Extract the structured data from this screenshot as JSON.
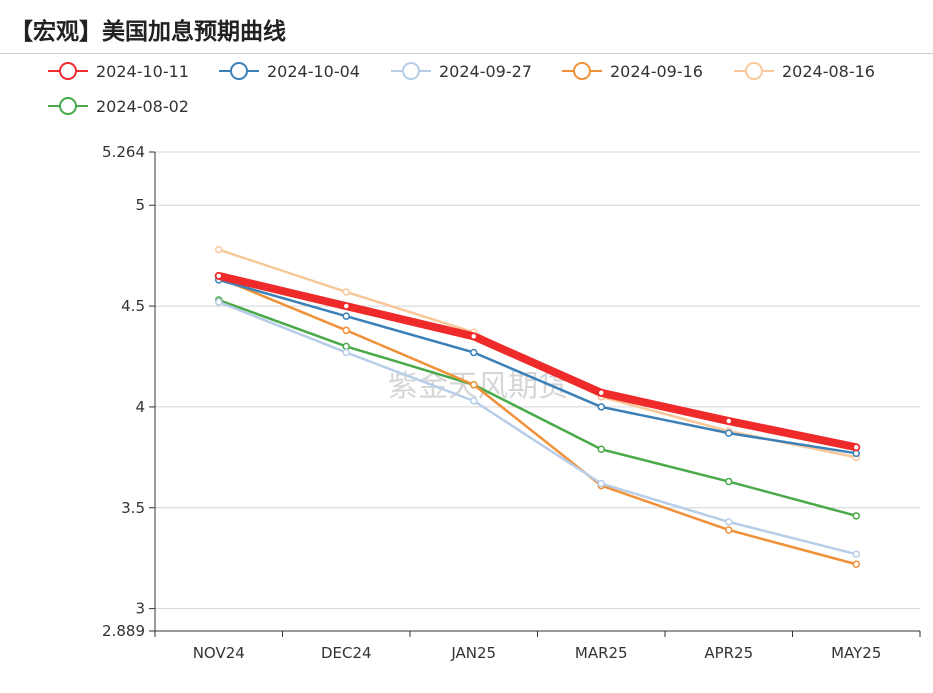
{
  "header": {
    "title": "【宏观】美国加息预期曲线"
  },
  "watermark": "紫金天风期货",
  "chart_data": {
    "type": "line",
    "categories": [
      "NOV24",
      "DEC24",
      "JAN25",
      "MAR25",
      "APR25",
      "MAY25"
    ],
    "ylim": [
      2.889,
      5.264
    ],
    "yticks": [
      "2.889",
      "3",
      "3.5",
      "4",
      "4.5",
      "5",
      "5.264"
    ],
    "ytick_values": [
      2.889,
      3,
      3.5,
      4,
      4.5,
      5,
      5.264
    ],
    "grid": true,
    "legend_position": "top",
    "series": [
      {
        "name": "2024-08-02",
        "color": "#4aaa4a",
        "values": [
          4.53,
          4.3,
          4.11,
          3.79,
          3.63,
          3.46
        ]
      },
      {
        "name": "2024-08-16",
        "color": "#f9c89a",
        "values": [
          4.78,
          4.57,
          4.37,
          4.05,
          3.88,
          3.75
        ]
      },
      {
        "name": "2024-09-16",
        "color": "#f0913a",
        "values": [
          4.64,
          4.38,
          4.11,
          3.61,
          3.39,
          3.22
        ]
      },
      {
        "name": "2024-09-27",
        "color": "#b8cde8",
        "values": [
          4.52,
          4.27,
          4.03,
          3.62,
          3.43,
          3.27
        ]
      },
      {
        "name": "2024-10-04",
        "color": "#3c80b8",
        "values": [
          4.63,
          4.45,
          4.27,
          4.0,
          3.87,
          3.77
        ]
      },
      {
        "name": "2024-10-11",
        "color": "#ee2a2a",
        "values": [
          4.65,
          4.5,
          4.35,
          4.07,
          3.93,
          3.8
        ]
      }
    ],
    "legend_order": [
      "2024-10-11",
      "2024-10-04",
      "2024-09-27",
      "2024-09-16",
      "2024-08-16",
      "2024-08-02"
    ]
  }
}
